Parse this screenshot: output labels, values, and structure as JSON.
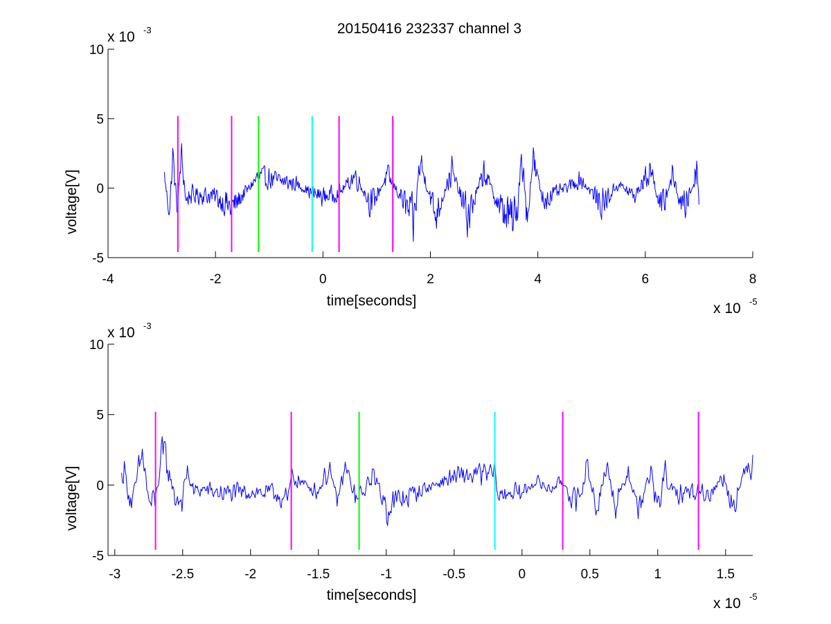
{
  "figure": {
    "title": "20150416 232337 channel 3"
  },
  "chart_data": [
    {
      "type": "line",
      "title": "20150416 232337 channel 3",
      "xlabel": "time[seconds]",
      "ylabel": "voltage[V]",
      "x_multiplier": {
        "base": "x 10",
        "exponent": "-5"
      },
      "y_multiplier": {
        "base": "x 10",
        "exponent": "-3"
      },
      "xlim": [
        -4,
        8
      ],
      "ylim": [
        -5,
        10
      ],
      "xticks": [
        -4,
        -2,
        0,
        2,
        4,
        6,
        8
      ],
      "xtick_labels": [
        "-4",
        "-2",
        "0",
        "2",
        "4",
        "6",
        "8"
      ],
      "yticks": [
        -5,
        0,
        5,
        10
      ],
      "ytick_labels": [
        "-5",
        "0",
        "5",
        "10"
      ],
      "grid": false,
      "series": [
        {
          "type": "line",
          "color": "#0000ff",
          "x_range": [
            -2.95,
            7.0
          ],
          "y_range": [
            -4.2,
            4.7
          ],
          "keypoints": [
            [
              -2.95,
              1.5
            ],
            [
              -2.9,
              -1.2
            ],
            [
              -2.85,
              -2.4
            ],
            [
              -2.8,
              3.8
            ],
            [
              -2.75,
              0.5
            ],
            [
              -2.7,
              -2.7
            ],
            [
              -2.65,
              3.5
            ],
            [
              -2.6,
              2.2
            ],
            [
              -2.55,
              -1.8
            ],
            [
              -2.5,
              -0.9
            ],
            [
              -2.3,
              -0.8
            ],
            [
              -2.0,
              -1.0
            ],
            [
              -1.7,
              -2.4
            ],
            [
              -1.2,
              1.4
            ],
            [
              -0.5,
              0.5
            ],
            [
              -0.2,
              -0.6
            ],
            [
              0.0,
              -1.0
            ],
            [
              0.3,
              -0.6
            ],
            [
              0.6,
              1.5
            ],
            [
              0.9,
              -2.0
            ],
            [
              1.2,
              1.5
            ],
            [
              1.5,
              -1.5
            ],
            [
              1.7,
              -4.1
            ],
            [
              1.8,
              3.2
            ],
            [
              2.1,
              -3.2
            ],
            [
              2.4,
              2.0
            ],
            [
              2.7,
              -3.5
            ],
            [
              3.0,
              2.0
            ],
            [
              3.3,
              -2.5
            ],
            [
              3.6,
              -4.0
            ],
            [
              3.7,
              4.7
            ],
            [
              3.8,
              -4.2
            ],
            [
              3.9,
              3.5
            ],
            [
              4.1,
              -1.5
            ],
            [
              4.3,
              -0.7
            ],
            [
              4.8,
              1.0
            ],
            [
              5.2,
              -2.0
            ],
            [
              5.5,
              0.5
            ],
            [
              5.8,
              -1.0
            ],
            [
              6.1,
              2.3
            ],
            [
              6.3,
              -2.7
            ],
            [
              6.5,
              1.5
            ],
            [
              6.7,
              -2.6
            ],
            [
              6.9,
              0.5
            ],
            [
              6.95,
              3.0
            ],
            [
              7.0,
              -1.0
            ]
          ]
        }
      ],
      "markers": [
        {
          "x": -2.7,
          "color": "#ff00ff"
        },
        {
          "x": -1.7,
          "color": "#ff00ff"
        },
        {
          "x": -1.2,
          "color": "#00ff00"
        },
        {
          "x": -0.2,
          "color": "#00ffff"
        },
        {
          "x": 0.3,
          "color": "#ff00ff"
        },
        {
          "x": 1.3,
          "color": "#ff00ff"
        }
      ],
      "marker_y_range": [
        -4.6,
        5.2
      ]
    },
    {
      "type": "line",
      "title": "",
      "xlabel": "time[seconds]",
      "ylabel": "voltage[V]",
      "x_multiplier": {
        "base": "x 10",
        "exponent": "-5"
      },
      "y_multiplier": {
        "base": "x 10",
        "exponent": "-3"
      },
      "xlim": [
        -3.05,
        1.7
      ],
      "ylim": [
        -5,
        10
      ],
      "xticks": [
        -3,
        -2.5,
        -2,
        -1.5,
        -1,
        -0.5,
        0,
        0.5,
        1,
        1.5
      ],
      "xtick_labels": [
        "-3",
        "-2.5",
        "-2",
        "-1.5",
        "-1",
        "-0.5",
        "0",
        "0.5",
        "1",
        "1.5"
      ],
      "yticks": [
        -5,
        0,
        5,
        10
      ],
      "ytick_labels": [
        "-5",
        "0",
        "5",
        "10"
      ],
      "grid": false,
      "series": [
        {
          "type": "line",
          "color": "#0000ff",
          "x_range": [
            -2.95,
            1.7
          ],
          "y_range": [
            -3.5,
            3.8
          ],
          "keypoints": [
            [
              -2.95,
              1.0
            ],
            [
              -2.93,
              1.8
            ],
            [
              -2.9,
              -1.0
            ],
            [
              -2.87,
              -2.4
            ],
            [
              -2.83,
              1.5
            ],
            [
              -2.79,
              3.8
            ],
            [
              -2.76,
              -1.2
            ],
            [
              -2.73,
              -2.5
            ],
            [
              -2.7,
              -1.7
            ],
            [
              -2.66,
              2.8
            ],
            [
              -2.63,
              3.4
            ],
            [
              -2.6,
              1.5
            ],
            [
              -2.56,
              -1.5
            ],
            [
              -2.5,
              -1.8
            ],
            [
              -2.47,
              1.8
            ],
            [
              -2.42,
              -0.8
            ],
            [
              -2.35,
              -0.5
            ],
            [
              -2.2,
              -1.0
            ],
            [
              -2.0,
              -0.8
            ],
            [
              -1.8,
              -1.0
            ],
            [
              -1.73,
              -2.4
            ],
            [
              -1.7,
              1.0
            ],
            [
              -1.5,
              -0.8
            ],
            [
              -1.42,
              2.2
            ],
            [
              -1.37,
              -2.0
            ],
            [
              -1.3,
              2.0
            ],
            [
              -1.22,
              -1.8
            ],
            [
              -1.18,
              -1.3
            ],
            [
              -1.1,
              1.5
            ],
            [
              -1.0,
              -2.6
            ],
            [
              -0.8,
              -1.0
            ],
            [
              -0.5,
              1.0
            ],
            [
              -0.2,
              1.4
            ],
            [
              -0.17,
              -1.6
            ],
            [
              -0.1,
              -0.8
            ],
            [
              0.0,
              -1.0
            ],
            [
              0.1,
              0.5
            ],
            [
              0.2,
              -0.5
            ],
            [
              0.3,
              0.5
            ],
            [
              0.4,
              -2.5
            ],
            [
              0.42,
              -3.1
            ],
            [
              0.47,
              2.6
            ],
            [
              0.55,
              -2.7
            ],
            [
              0.62,
              2.2
            ],
            [
              0.7,
              -2.8
            ],
            [
              0.78,
              2.0
            ],
            [
              0.85,
              -3.0
            ],
            [
              0.95,
              1.5
            ],
            [
              1.0,
              -3.5
            ],
            [
              1.05,
              1.8
            ],
            [
              1.1,
              -1.2
            ],
            [
              1.2,
              -0.8
            ],
            [
              1.3,
              -0.8
            ],
            [
              1.4,
              -1.0
            ],
            [
              1.48,
              1.2
            ],
            [
              1.55,
              -2.4
            ],
            [
              1.62,
              0.5
            ],
            [
              1.66,
              1.8
            ],
            [
              1.68,
              3.2
            ],
            [
              1.7,
              3.1
            ]
          ]
        }
      ],
      "markers": [
        {
          "x": -2.7,
          "color": "#ff00ff"
        },
        {
          "x": -1.7,
          "color": "#ff00ff"
        },
        {
          "x": -1.2,
          "color": "#00ff00"
        },
        {
          "x": -0.2,
          "color": "#00ffff"
        },
        {
          "x": 0.3,
          "color": "#ff00ff"
        },
        {
          "x": 1.3,
          "color": "#ff00ff"
        }
      ],
      "marker_y_range": [
        -4.6,
        5.2
      ]
    }
  ]
}
